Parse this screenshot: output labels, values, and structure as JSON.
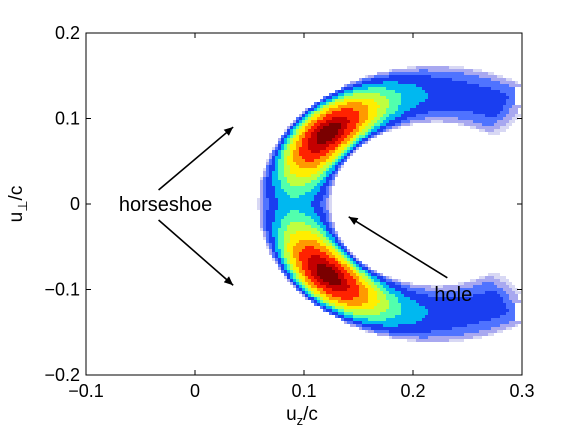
{
  "chart_data": {
    "type": "heatmap",
    "title": "",
    "xlabel": {
      "main": "u",
      "sub": "z",
      "tail": "/c"
    },
    "ylabel": {
      "main": "u",
      "sub": "⊥",
      "tail": "/c"
    },
    "xlim": [
      -0.1,
      0.3
    ],
    "ylim": [
      -0.2,
      0.2
    ],
    "xticks": [
      -0.1,
      0,
      0.1,
      0.2,
      0.3
    ],
    "yticks": [
      -0.2,
      -0.1,
      0,
      0.1,
      0.2
    ],
    "xtick_labels": [
      "−0.1",
      "0",
      "0.1",
      "0.2",
      "0.3"
    ],
    "ytick_labels": [
      "−0.2",
      "−0.1",
      "0",
      "0.1",
      "0.2"
    ],
    "grid": false,
    "colormap": "jet",
    "levels": [
      {
        "level": 0.03,
        "color": "#d8d8f4"
      },
      {
        "level": 0.1,
        "color": "#a8a8f0"
      },
      {
        "level": 0.2,
        "color": "#4f73ff"
      },
      {
        "level": 0.3,
        "color": "#1a3ef0"
      },
      {
        "level": 0.42,
        "color": "#00b8f0"
      },
      {
        "level": 0.52,
        "color": "#52ffad"
      },
      {
        "level": 0.6,
        "color": "#bfff40"
      },
      {
        "level": 0.68,
        "color": "#ffee00"
      },
      {
        "level": 0.76,
        "color": "#ff9900"
      },
      {
        "level": 0.84,
        "color": "#ff2200"
      },
      {
        "level": 0.92,
        "color": "#c40000"
      },
      {
        "level": 0.97,
        "color": "#7a0000"
      }
    ],
    "features": {
      "horseshoe": {
        "center": [
          0.22,
          0.0
        ],
        "inner_radius": 0.095,
        "outer_radius": 0.162,
        "peak_radius": 0.12,
        "half_width": 0.05,
        "hot_angle_deg": 40,
        "extent_deg": 128
      },
      "hole": {
        "center": [
          0.132,
          0.0
        ],
        "half_width_z": 0.006,
        "half_height_perp": 0.014
      }
    },
    "annotations": [
      {
        "text": "horseshoe",
        "label_pos": [
          -0.027,
          0.0
        ],
        "arrows_to": [
          [
            0.035,
            0.09
          ],
          [
            0.035,
            -0.095
          ]
        ]
      },
      {
        "text": "hole",
        "label_pos": [
          0.237,
          -0.105
        ],
        "arrows_to": [
          [
            0.141,
            -0.015
          ]
        ]
      }
    ]
  }
}
